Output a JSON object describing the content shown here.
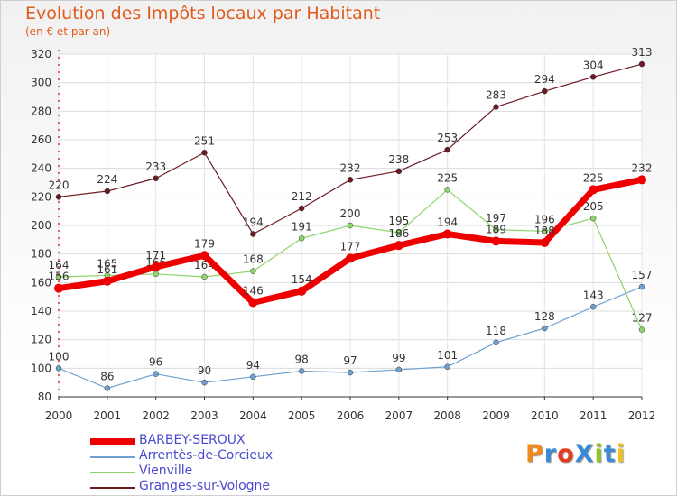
{
  "title": "Evolution des Impôts locaux par Habitant",
  "subtitle": "(en € et par an)",
  "logo": {
    "text": "ProXiti",
    "letter_colors": [
      "#f08a1c",
      "#3a8ad8",
      "#e53a1c",
      "#3a8ad8",
      "#8ec51f",
      "#3a8ad8",
      "#f0c01c"
    ]
  },
  "chart_data": {
    "type": "line",
    "x": [
      2000,
      2001,
      2002,
      2003,
      2004,
      2005,
      2006,
      2007,
      2008,
      2009,
      2010,
      2011,
      2012
    ],
    "ylim": [
      80,
      320
    ],
    "yticks": [
      80,
      100,
      120,
      140,
      160,
      180,
      200,
      220,
      240,
      260,
      280,
      300,
      320
    ],
    "grid": true,
    "legend_position": "bottom-left",
    "series": [
      {
        "name": "Granges-sur-Vologne",
        "color": "#6b1a22",
        "width": 1.2,
        "marker": 3,
        "values": [
          220,
          224,
          233,
          251,
          194,
          212,
          232,
          238,
          253,
          283,
          294,
          304,
          313
        ]
      },
      {
        "name": "Vienville",
        "color": "#8ed46a",
        "width": 1.2,
        "marker": 3,
        "values": [
          164,
          165,
          166,
          164,
          168,
          191,
          200,
          195,
          225,
          197,
          196,
          205,
          127
        ]
      },
      {
        "name": "Arrentès-de-Corcieux",
        "color": "#6fa0d0",
        "width": 1.2,
        "marker": 3,
        "values": [
          100,
          86,
          96,
          90,
          94,
          98,
          97,
          99,
          101,
          118,
          128,
          143,
          157
        ]
      },
      {
        "name": "BARBEY-SEROUX",
        "color": "#ee0000",
        "width": 7,
        "marker": 5,
        "values": [
          156,
          161,
          171,
          179,
          146,
          154,
          177,
          186,
          194,
          189,
          188,
          225,
          232
        ]
      }
    ]
  }
}
